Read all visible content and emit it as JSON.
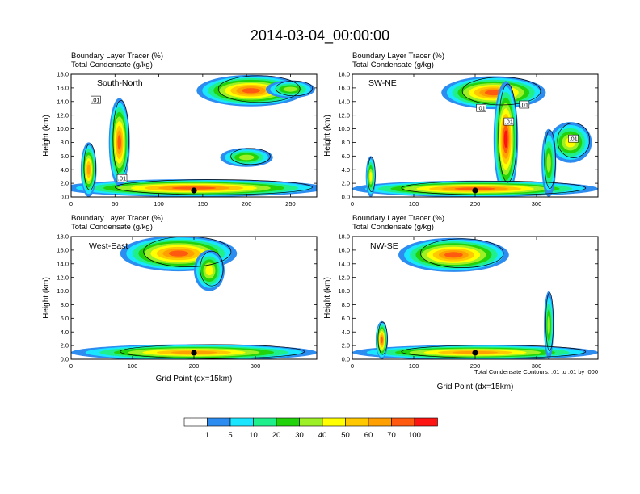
{
  "figure": {
    "title": "2014-03-04_00:00:00",
    "bottom_note": "Total Condensate Contours: .01 to .01 by .000"
  },
  "colorbar": {
    "colors": [
      "#ffffff",
      "#2d8cf0",
      "#1ae6ff",
      "#20f08c",
      "#22d20a",
      "#9cf025",
      "#ffff00",
      "#ffc800",
      "#ffa000",
      "#ff5a10",
      "#ff1414"
    ],
    "labels": [
      "1",
      "5",
      "10",
      "20",
      "30",
      "40",
      "50",
      "60",
      "70",
      "100"
    ]
  },
  "chart_data": [
    {
      "type": "heatmap",
      "panel": "top-left",
      "subtitle1": "Boundary Layer Tracer    (%)",
      "subtitle2": "Total Condensate    (g/kg)",
      "region": "South-North",
      "ylabel": "Height (km)",
      "xlabel": "",
      "xlim": [
        0,
        280
      ],
      "ylim": [
        0,
        18
      ],
      "xticks": [
        0,
        50,
        100,
        150,
        200,
        250
      ],
      "yticks": [
        "0.0",
        "2.0",
        "4.0",
        "6.0",
        "8.0",
        "10.0",
        "12.0",
        "14.0",
        "16.0",
        "18.0"
      ],
      "marker_x": 140,
      "contour_labels": [
        {
          "x": 28,
          "y": 14.2,
          "text": ".01"
        },
        {
          "x": 58,
          "y": 2.7,
          "text": ".01"
        }
      ],
      "features": [
        {
          "x": 205,
          "y": 15.6,
          "rx": 62,
          "ry": 2.3,
          "v": 70
        },
        {
          "x": 250,
          "y": 15.8,
          "rx": 28,
          "ry": 1.3,
          "v": 30
        },
        {
          "x": 140,
          "y": 1.3,
          "rx": 150,
          "ry": 1.3,
          "v": 70
        },
        {
          "x": 55,
          "y": 8.0,
          "rx": 12,
          "ry": 6.5,
          "v": 70
        },
        {
          "x": 20,
          "y": 4.0,
          "rx": 9,
          "ry": 4.0,
          "v": 60
        },
        {
          "x": 200,
          "y": 5.8,
          "rx": 30,
          "ry": 1.4,
          "v": 30
        }
      ]
    },
    {
      "type": "heatmap",
      "panel": "top-right",
      "subtitle1": "Boundary Layer Tracer    (%)",
      "subtitle2": "Total Condensate    (g/kg)",
      "region": "SW-NE",
      "ylabel": "Height (km)",
      "xlabel": "",
      "xlim": [
        0,
        400
      ],
      "ylim": [
        0,
        18
      ],
      "xticks": [
        0,
        100,
        200,
        300
      ],
      "yticks": [
        "0.0",
        "2.0",
        "4.0",
        "6.0",
        "8.0",
        "10.0",
        "12.0",
        "14.0",
        "16.0",
        "18.0"
      ],
      "marker_x": 200,
      "contour_labels": [
        {
          "x": 210,
          "y": 13.0,
          "text": ".01"
        },
        {
          "x": 255,
          "y": 11.0,
          "text": ".01"
        },
        {
          "x": 280,
          "y": 13.5,
          "text": ".01"
        },
        {
          "x": 360,
          "y": 8.5,
          "text": ".01"
        }
      ],
      "features": [
        {
          "x": 230,
          "y": 15.3,
          "rx": 85,
          "ry": 2.4,
          "v": 70
        },
        {
          "x": 250,
          "y": 8.5,
          "rx": 20,
          "ry": 8.5,
          "v": 100
        },
        {
          "x": 200,
          "y": 1.2,
          "rx": 200,
          "ry": 1.2,
          "v": 70
        },
        {
          "x": 355,
          "y": 8.0,
          "rx": 35,
          "ry": 3.0,
          "v": 40
        },
        {
          "x": 320,
          "y": 5.0,
          "rx": 12,
          "ry": 5.0,
          "v": 30
        },
        {
          "x": 30,
          "y": 3.0,
          "rx": 8,
          "ry": 3.0,
          "v": 40
        }
      ]
    },
    {
      "type": "heatmap",
      "panel": "bottom-left",
      "subtitle1": "Boundary Layer Tracer    (%)",
      "subtitle2": "Total Condensate    (g/kg)",
      "region": "West-East",
      "ylabel": "Height (km)",
      "xlabel": "Grid Point (dx=15km)",
      "xlim": [
        0,
        400
      ],
      "ylim": [
        0,
        18
      ],
      "xticks": [
        0,
        100,
        200,
        300
      ],
      "yticks": [
        "0.0",
        "2.0",
        "4.0",
        "6.0",
        "8.0",
        "10.0",
        "12.0",
        "14.0",
        "16.0",
        "18.0"
      ],
      "marker_x": 200,
      "contour_labels": [],
      "features": [
        {
          "x": 175,
          "y": 15.5,
          "rx": 95,
          "ry": 2.6,
          "v": 70
        },
        {
          "x": 200,
          "y": 1.0,
          "rx": 200,
          "ry": 1.2,
          "v": 60
        },
        {
          "x": 225,
          "y": 13.0,
          "rx": 25,
          "ry": 3.0,
          "v": 40
        }
      ]
    },
    {
      "type": "heatmap",
      "panel": "bottom-right",
      "subtitle1": "Boundary Layer Tracer    (%)",
      "subtitle2": "Total Condensate    (g/kg)",
      "region": "NW-SE",
      "ylabel": "Height (km)",
      "xlabel": "Grid Point (dx=15km)",
      "xlim": [
        0,
        400
      ],
      "ylim": [
        0,
        18
      ],
      "xticks": [
        0,
        100,
        200,
        300
      ],
      "yticks": [
        "0.0",
        "2.0",
        "4.0",
        "6.0",
        "8.0",
        "10.0",
        "12.0",
        "14.0",
        "16.0",
        "18.0"
      ],
      "marker_x": 200,
      "contour_labels": [],
      "features": [
        {
          "x": 165,
          "y": 15.3,
          "rx": 90,
          "ry": 2.5,
          "v": 70
        },
        {
          "x": 200,
          "y": 1.0,
          "rx": 200,
          "ry": 1.1,
          "v": 60
        },
        {
          "x": 48,
          "y": 2.8,
          "rx": 10,
          "ry": 2.8,
          "v": 70
        },
        {
          "x": 320,
          "y": 5.0,
          "rx": 8,
          "ry": 5.0,
          "v": 30
        }
      ]
    }
  ]
}
